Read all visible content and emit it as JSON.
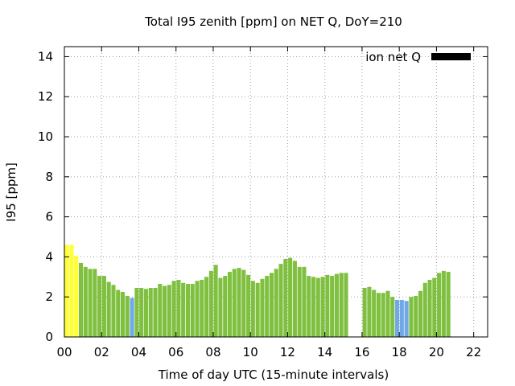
{
  "chart_data": {
    "type": "bar",
    "title": "Total I95 zenith [ppm] on NET Q, DoY=210",
    "xlabel": "Time of day UTC (15-minute intervals)",
    "ylabel": "I95 [ppm]",
    "xlim": [
      0,
      22.75
    ],
    "ylim": [
      0,
      14.5
    ],
    "x_ticks": [
      0,
      2,
      4,
      6,
      8,
      10,
      12,
      14,
      16,
      18,
      20,
      22
    ],
    "x_tick_labels": [
      "00",
      "02",
      "04",
      "06",
      "08",
      "10",
      "12",
      "14",
      "16",
      "18",
      "20",
      "22"
    ],
    "y_ticks": [
      0,
      2,
      4,
      6,
      8,
      10,
      12,
      14
    ],
    "y_tick_labels": [
      "0",
      "2",
      "4",
      "6",
      "8",
      "10",
      "12",
      "14"
    ],
    "grid": true,
    "legend": {
      "position": "top-right",
      "label": "ion net Q",
      "color": "#000000"
    },
    "colors": {
      "yellow": "#ffff33",
      "green": "#80c040",
      "blue": "#70a8e8"
    },
    "bar_interval_hours": 0.25,
    "values": [
      4.6,
      4.6,
      4.05,
      3.7,
      3.5,
      3.4,
      3.4,
      3.05,
      3.05,
      2.75,
      2.6,
      2.35,
      2.25,
      2.05,
      1.95,
      2.45,
      2.45,
      2.4,
      2.45,
      2.45,
      2.65,
      2.55,
      2.6,
      2.8,
      2.85,
      2.7,
      2.65,
      2.65,
      2.8,
      2.85,
      3.0,
      3.3,
      3.6,
      2.95,
      3.05,
      3.25,
      3.4,
      3.45,
      3.35,
      3.1,
      2.8,
      2.7,
      2.9,
      3.05,
      3.2,
      3.4,
      3.65,
      3.9,
      3.95,
      3.8,
      3.5,
      3.5,
      3.05,
      3.0,
      2.95,
      3.0,
      3.1,
      3.05,
      3.15,
      3.2,
      3.2,
      null,
      null,
      null,
      2.45,
      2.5,
      2.35,
      2.2,
      2.2,
      2.3,
      2.0,
      1.85,
      1.85,
      1.8,
      2.0,
      2.05,
      2.3,
      2.7,
      2.85,
      2.95,
      3.2,
      3.3,
      3.25
    ],
    "bar_colors": [
      "yellow",
      "yellow",
      "yellow",
      "green",
      "green",
      "green",
      "green",
      "green",
      "green",
      "green",
      "green",
      "green",
      "green",
      "green",
      "blue",
      "green",
      "green",
      "green",
      "green",
      "green",
      "green",
      "green",
      "green",
      "green",
      "green",
      "green",
      "green",
      "green",
      "green",
      "green",
      "green",
      "green",
      "green",
      "green",
      "green",
      "green",
      "green",
      "green",
      "green",
      "green",
      "green",
      "green",
      "green",
      "green",
      "green",
      "green",
      "green",
      "green",
      "green",
      "green",
      "green",
      "green",
      "green",
      "green",
      "green",
      "green",
      "green",
      "green",
      "green",
      "green",
      "green",
      "green",
      "green",
      "green",
      "green",
      "green",
      "green",
      "green",
      "green",
      "green",
      "green",
      "blue",
      "blue",
      "blue",
      "green",
      "green",
      "green",
      "green",
      "green",
      "green",
      "green",
      "green",
      "green"
    ]
  }
}
